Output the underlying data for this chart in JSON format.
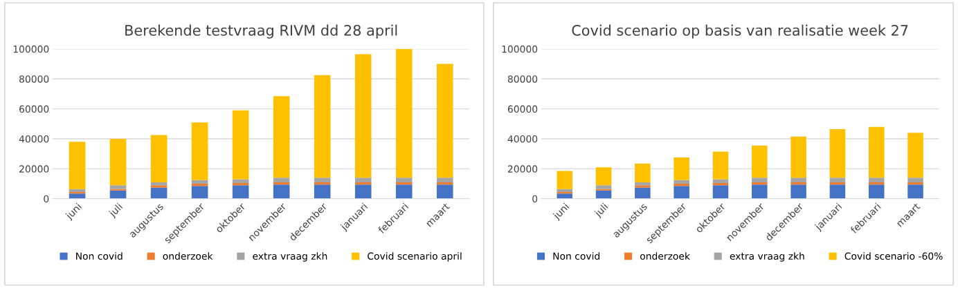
{
  "chart_data": [
    {
      "type": "bar",
      "title": "Berekende testvraag RIVM dd 28 april",
      "stacked": true,
      "grid": "y",
      "legend": "bottom",
      "categories": [
        "juni",
        "juli",
        "augustus",
        "september",
        "oktober",
        "november",
        "december",
        "januari",
        "februari",
        "maart"
      ],
      "series": [
        {
          "name": "Non covid",
          "color": "#4472c4",
          "values": [
            3500,
            5500,
            7500,
            8500,
            9000,
            9500,
            9500,
            9500,
            9500,
            9500
          ]
        },
        {
          "name": "onderzoek",
          "color": "#ed7d31",
          "values": [
            1000,
            1000,
            1500,
            1500,
            1500,
            1500,
            1500,
            1500,
            1500,
            1500
          ]
        },
        {
          "name": "extra vraag zkh",
          "color": "#a5a5a5",
          "values": [
            2000,
            2500,
            2000,
            2500,
            2500,
            3000,
            3000,
            3000,
            3000,
            3000
          ]
        },
        {
          "name": "Covid scenario april",
          "color": "#ffc000",
          "values": [
            31500,
            31000,
            31500,
            38500,
            46000,
            54500,
            68500,
            82500,
            86000,
            76000
          ]
        }
      ],
      "ylim": [
        0,
        100000
      ],
      "yticks": [
        0,
        20000,
        40000,
        60000,
        80000,
        100000
      ]
    },
    {
      "type": "bar",
      "title": "Covid scenario op basis van realisatie week 27",
      "stacked": true,
      "grid": "y",
      "legend": "bottom",
      "categories": [
        "juni",
        "juli",
        "augustus",
        "september",
        "oktober",
        "november",
        "december",
        "januari",
        "februari",
        "maart"
      ],
      "series": [
        {
          "name": "Non covid",
          "color": "#4472c4",
          "values": [
            3500,
            5500,
            7500,
            8500,
            9000,
            9500,
            9500,
            9500,
            9500,
            9500
          ]
        },
        {
          "name": "onderzoek",
          "color": "#ed7d31",
          "values": [
            1000,
            1000,
            1500,
            1500,
            1500,
            1500,
            1500,
            1500,
            1500,
            1500
          ]
        },
        {
          "name": "extra vraag zkh",
          "color": "#a5a5a5",
          "values": [
            2000,
            2500,
            2000,
            2500,
            2500,
            3000,
            3000,
            3000,
            3000,
            3000
          ]
        },
        {
          "name": "Covid scenario -60%",
          "color": "#ffc000",
          "values": [
            12000,
            12000,
            12500,
            15000,
            18500,
            21500,
            27500,
            32500,
            34000,
            30000
          ]
        }
      ],
      "ylim": [
        0,
        100000
      ],
      "yticks": [
        0,
        20000,
        40000,
        60000,
        80000,
        100000
      ]
    }
  ]
}
